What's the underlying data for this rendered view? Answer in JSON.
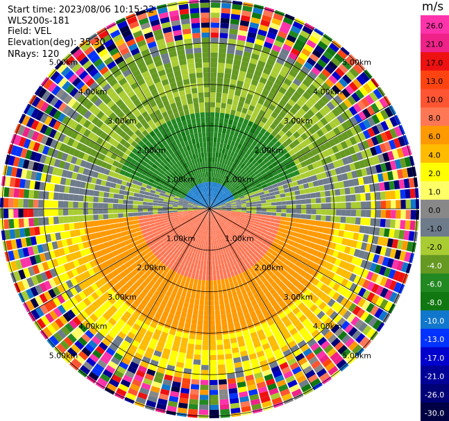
{
  "header": {
    "start_time": "Start time: 2023/08/06 10:15:22",
    "instrument": "WLS200s-181",
    "field": "Field: VEL",
    "elevation": "Elevation(deg): 35.30",
    "nrays": "NRays: 120"
  },
  "chart_data": {
    "type": "heatmap",
    "projection": "polar PPI",
    "n_rays": 120,
    "range_rings_km": [
      1.0,
      2.0,
      3.0,
      4.0,
      5.0
    ],
    "range_ring_labels": [
      "1.00km",
      "2.00km",
      "3.00km",
      "4.00km",
      "5.00km"
    ],
    "max_range_km": 5.05,
    "spoke_angles_deg": [
      0,
      30,
      60,
      90,
      120,
      150,
      180,
      210,
      240,
      270,
      300,
      330
    ],
    "colorbar": {
      "unit": "m/s",
      "tick_labels": [
        "26.0",
        "21.0",
        "17.0",
        "13.0",
        "10.0",
        "8.0",
        "6.0",
        "4.0",
        "2.0",
        "1.0",
        "0.0",
        "-1.0",
        "-2.0",
        "-4.0",
        "-6.0",
        "-8.0",
        "-10.0",
        "-13.0",
        "-17.0",
        "-21.0",
        "-26.0",
        "-30.0"
      ],
      "colors": [
        "#ff33aa",
        "#ee2288",
        "#ee1111",
        "#ff4411",
        "#ff5533",
        "#ff7755",
        "#ff9900",
        "#ffbb00",
        "#ffff00",
        "#ffff66",
        "#888888",
        "#6e7b8b",
        "#aacc33",
        "#669922",
        "#228822",
        "#117711",
        "#1177cc",
        "#0033ff",
        "#0000cc",
        "#000099",
        "#000077",
        "#000044"
      ]
    }
  }
}
